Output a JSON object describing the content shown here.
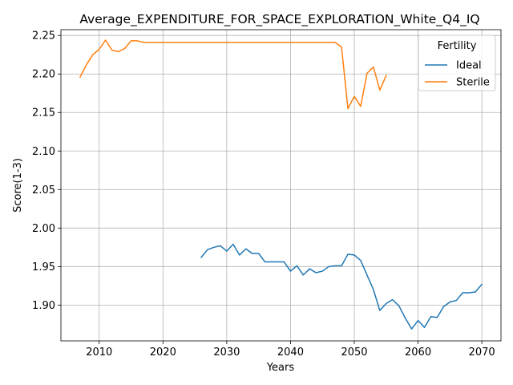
{
  "chart_data": {
    "type": "line",
    "title": "Average_EXPENDITURE_FOR_SPACE_EXPLORATION_White_Q4_IQ",
    "xlabel": "Years",
    "ylabel": "Score(1-3)",
    "xlim": [
      2004,
      2073
    ],
    "ylim": [
      1.8535,
      2.2575
    ],
    "xticks": [
      2010,
      2020,
      2030,
      2040,
      2050,
      2060,
      2070
    ],
    "yticks": [
      1.9,
      1.95,
      2.0,
      2.05,
      2.1,
      2.15,
      2.2,
      2.25
    ],
    "xtick_labels": [
      "2010",
      "2020",
      "2030",
      "2040",
      "2050",
      "2060",
      "2070"
    ],
    "ytick_labels": [
      "1.90",
      "1.95",
      "2.00",
      "2.05",
      "2.10",
      "2.15",
      "2.20",
      "2.25"
    ],
    "grid": true,
    "legend": {
      "title": "Fertility",
      "position": "top-right"
    },
    "series": [
      {
        "name": "Ideal",
        "color": "#1f77b4",
        "x": [
          2026,
          2027,
          2028,
          2029,
          2030,
          2031,
          2032,
          2033,
          2034,
          2035,
          2036,
          2037,
          2038,
          2039,
          2040,
          2041,
          2042,
          2043,
          2044,
          2045,
          2046,
          2047,
          2048,
          2049,
          2050,
          2051,
          2052,
          2053,
          2054,
          2055,
          2056,
          2057,
          2058,
          2059,
          2060,
          2061,
          2062,
          2063,
          2064,
          2065,
          2066,
          2067,
          2068,
          2069,
          2070
        ],
        "y": [
          1.962,
          1.972,
          1.975,
          1.977,
          1.97,
          1.979,
          1.965,
          1.973,
          1.967,
          1.967,
          1.956,
          1.956,
          1.956,
          1.956,
          1.944,
          1.951,
          1.939,
          1.947,
          1.942,
          1.944,
          1.95,
          1.951,
          1.951,
          1.966,
          1.965,
          1.958,
          1.939,
          1.92,
          1.893,
          1.902,
          1.907,
          1.899,
          1.883,
          1.869,
          1.88,
          1.871,
          1.885,
          1.884,
          1.898,
          1.904,
          1.906,
          1.916,
          1.916,
          1.917,
          1.927
        ]
      },
      {
        "name": "Sterile",
        "color": "#ff7f0e",
        "x": [
          2007,
          2008,
          2009,
          2010,
          2011,
          2012,
          2013,
          2014,
          2015,
          2016,
          2017,
          2018,
          2019,
          2020,
          2021,
          2022,
          2023,
          2024,
          2025,
          2026,
          2027,
          2028,
          2029,
          2030,
          2031,
          2032,
          2033,
          2034,
          2035,
          2036,
          2037,
          2038,
          2039,
          2040,
          2041,
          2042,
          2043,
          2044,
          2045,
          2046,
          2047,
          2048,
          2049,
          2050,
          2051,
          2052,
          2053,
          2054,
          2055
        ],
        "y": [
          2.196,
          2.212,
          2.225,
          2.232,
          2.244,
          2.231,
          2.229,
          2.233,
          2.243,
          2.243,
          2.241,
          2.241,
          2.241,
          2.241,
          2.241,
          2.241,
          2.241,
          2.241,
          2.241,
          2.241,
          2.241,
          2.241,
          2.241,
          2.241,
          2.241,
          2.241,
          2.241,
          2.241,
          2.241,
          2.241,
          2.241,
          2.241,
          2.241,
          2.241,
          2.241,
          2.241,
          2.241,
          2.241,
          2.241,
          2.241,
          2.241,
          2.235,
          2.155,
          2.171,
          2.158,
          2.201,
          2.209,
          2.179,
          2.198
        ]
      }
    ]
  }
}
